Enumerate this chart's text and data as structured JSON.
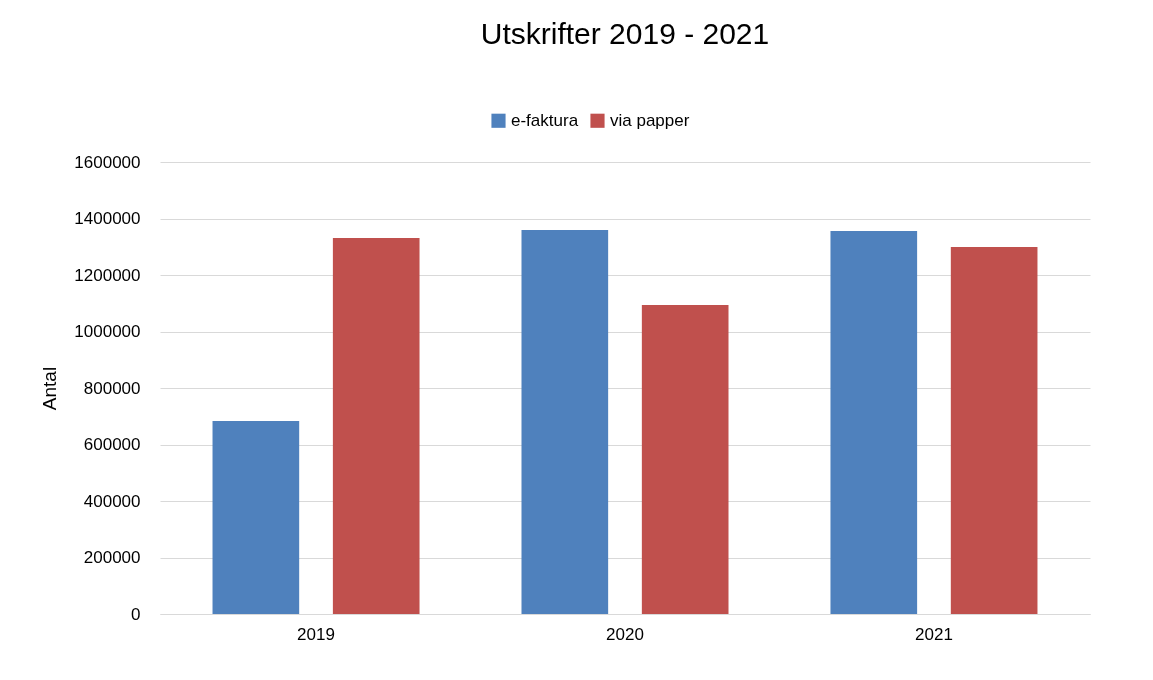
{
  "chart_data": {
    "type": "bar",
    "title": "Utskrifter 2019 - 2021",
    "ylabel": "Antal",
    "categories": [
      "2019",
      "2020",
      "2021"
    ],
    "series": [
      {
        "name": "e-faktura",
        "color": "#4f81bd",
        "values": [
          683000,
          1359000,
          1356000
        ]
      },
      {
        "name": "via papper",
        "color": "#c0504d",
        "values": [
          1331000,
          1094000,
          1299000
        ]
      }
    ],
    "ylim": [
      0,
      1600000
    ],
    "yticks": [
      0,
      200000,
      400000,
      600000,
      800000,
      1000000,
      1200000,
      1400000,
      1600000
    ],
    "grid": "y",
    "legend": "top"
  }
}
